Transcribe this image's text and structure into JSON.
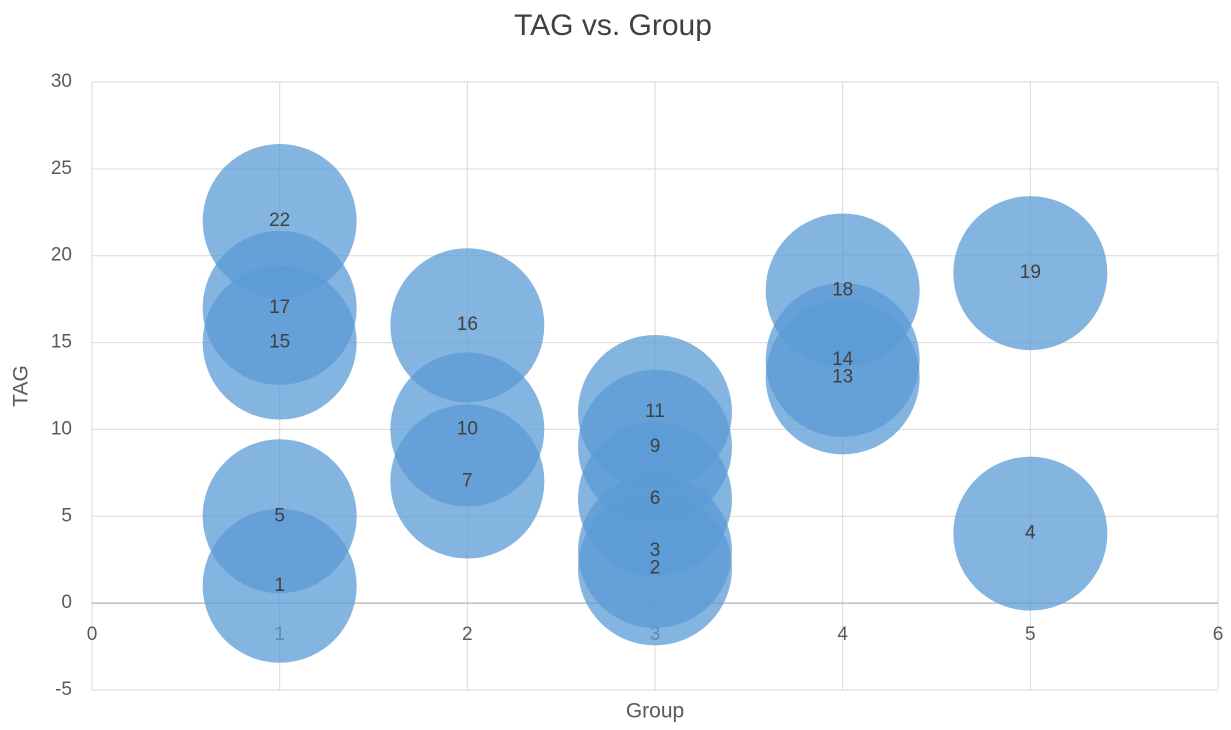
{
  "chart_data": {
    "type": "bubble",
    "title": "TAG vs. Group",
    "x_label": "Group",
    "y_label": "TAG",
    "x": [
      1,
      1,
      1,
      1,
      1,
      2,
      2,
      2,
      3,
      3,
      3,
      3,
      3,
      4,
      4,
      4,
      5,
      5
    ],
    "values": [
      22,
      17,
      15,
      5,
      1,
      16,
      10,
      7,
      11,
      9,
      6,
      3,
      2,
      18,
      14,
      13,
      19,
      4
    ],
    "color": "#5b9bd5",
    "xlim": [
      0,
      6
    ],
    "xticks": [
      0,
      1,
      2,
      3,
      4,
      5,
      6
    ],
    "ylim": [
      -5,
      30
    ],
    "yticks": [
      -5,
      0,
      5,
      10,
      15,
      20,
      25,
      30
    ],
    "grid": true
  }
}
